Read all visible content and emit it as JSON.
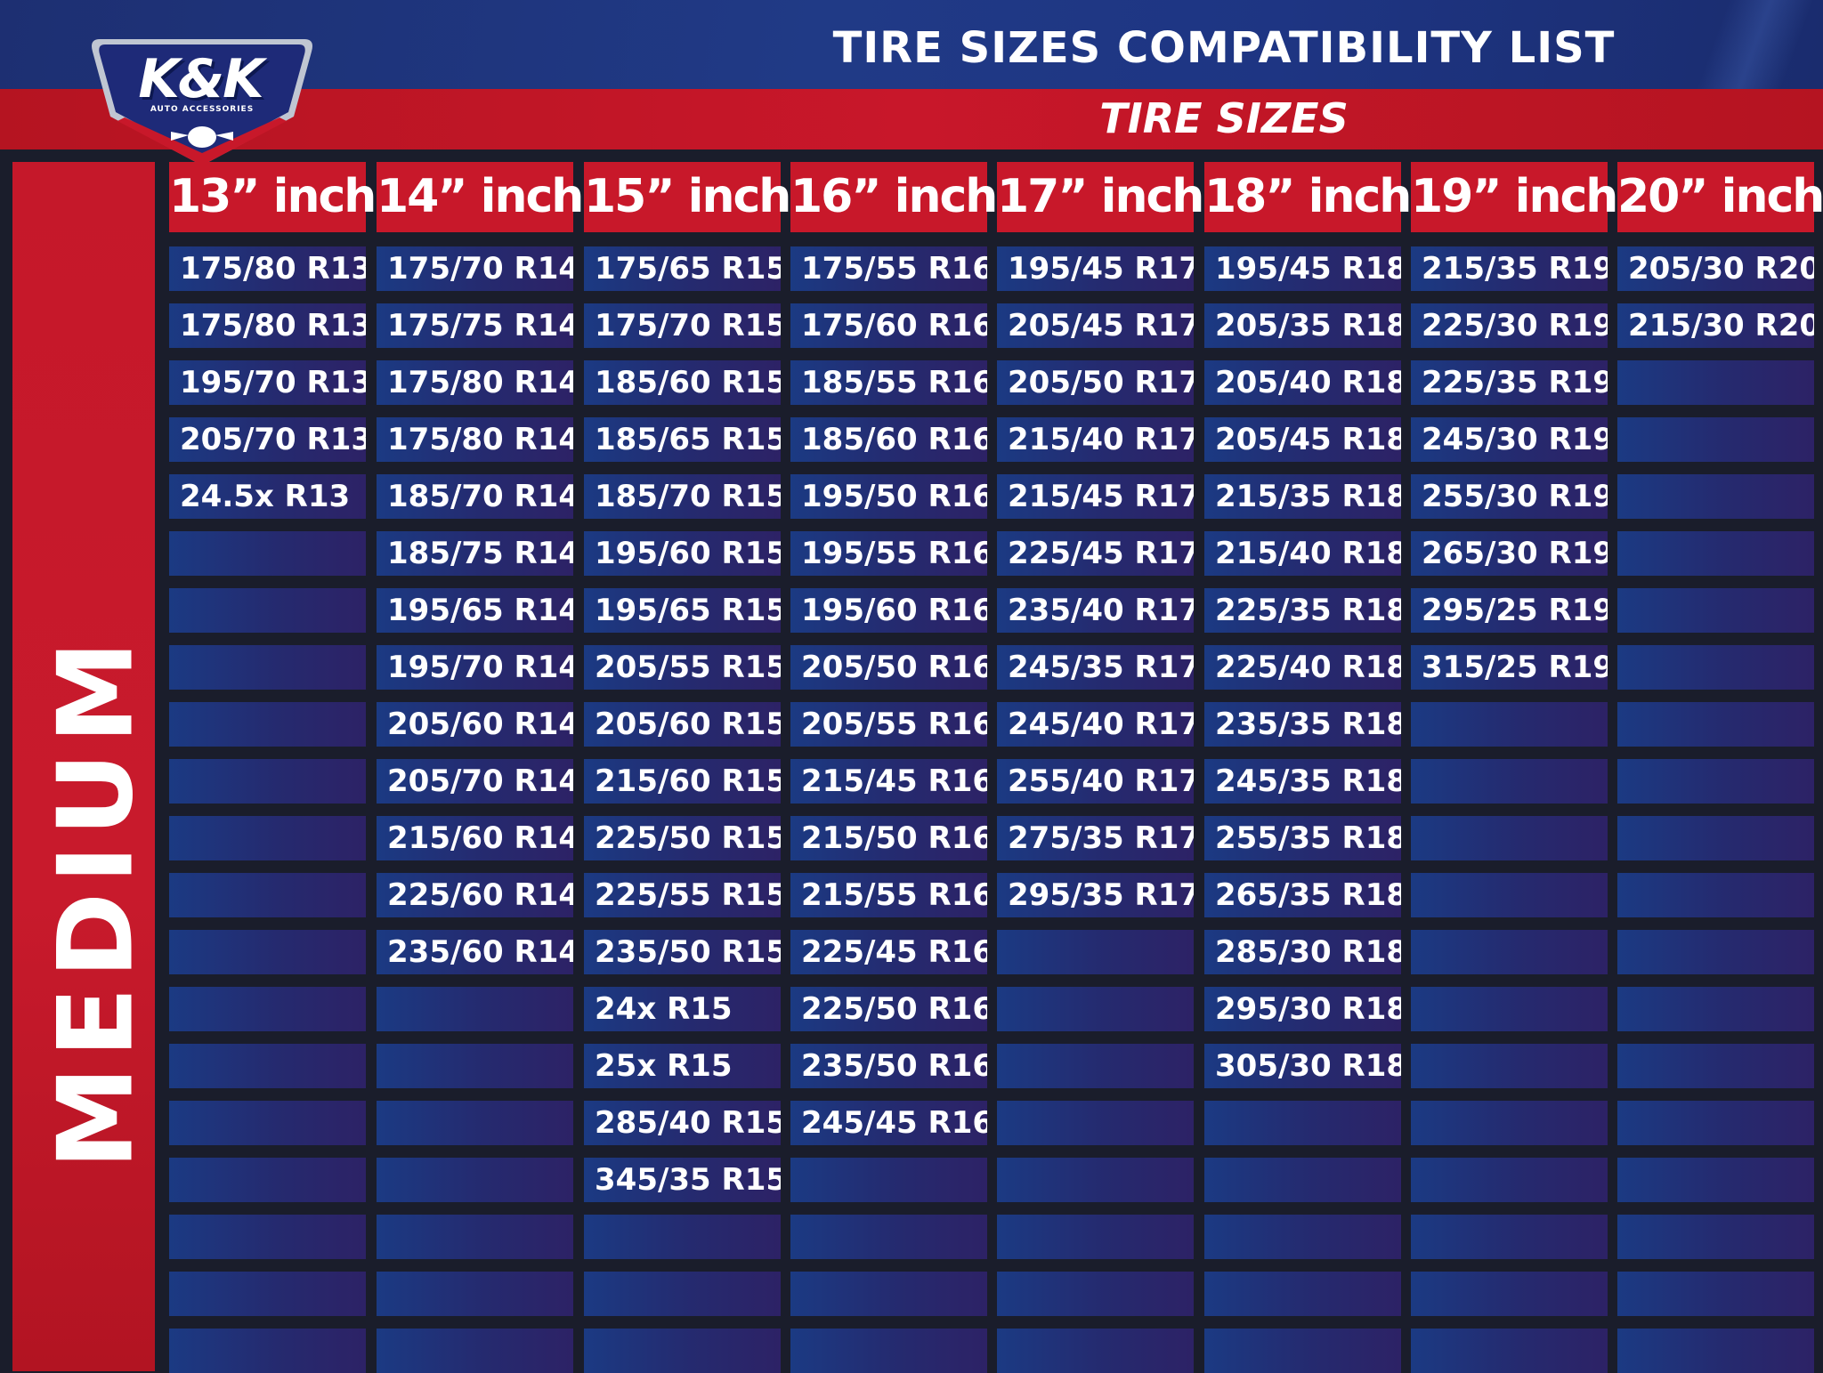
{
  "header": {
    "title": "TIRE SIZES COMPATIBILITY LIST",
    "subtitle": "TIRE SIZES"
  },
  "logo": {
    "brand": "K&K",
    "tagline": "AUTO ACCESSORIES"
  },
  "category": "MEDIUM",
  "colors": {
    "red": "#c8182a",
    "navy": "#1e3583",
    "cell_blue": "#232c72",
    "background": "#1a1d2b"
  },
  "table": {
    "columns": [
      {
        "label": "13” inch",
        "sizes": [
          "175/80 R13",
          "175/80 R13",
          "195/70 R13",
          "205/70 R13",
          "24.5x R13"
        ]
      },
      {
        "label": "14” inch",
        "sizes": [
          "175/70 R14",
          "175/75 R14",
          "175/80 R14",
          "175/80 R14",
          "185/70 R14",
          "185/75 R14",
          "195/65 R14",
          "195/70 R14",
          "205/60 R14",
          "205/70 R14",
          "215/60 R14",
          "225/60 R14",
          "235/60 R14"
        ]
      },
      {
        "label": "15” inch",
        "sizes": [
          "175/65 R15",
          "175/70 R15",
          "185/60 R15",
          "185/65 R15",
          "185/70 R15",
          "195/60 R15",
          "195/65 R15",
          "205/55 R15",
          "205/60 R15",
          "215/60 R15",
          "225/50 R15",
          "225/55 R15",
          "235/50 R15",
          "24x R15",
          "25x R15",
          "285/40 R15",
          "345/35 R15"
        ]
      },
      {
        "label": "16” inch",
        "sizes": [
          "175/55 R16",
          "175/60 R16",
          "185/55 R16",
          "185/60 R16",
          "195/50 R16",
          "195/55 R16",
          "195/60 R16",
          "205/50 R16",
          "205/55 R16",
          "215/45 R16",
          "215/50 R16",
          "215/55 R16",
          "225/45 R16",
          "225/50 R16",
          "235/50 R16",
          "245/45 R16"
        ]
      },
      {
        "label": "17” inch",
        "sizes": [
          "195/45 R17",
          "205/45 R17",
          "205/50 R17",
          "215/40 R17",
          "215/45 R17",
          "225/45 R17",
          "235/40 R17",
          "245/35 R17",
          "245/40 R17",
          "255/40 R17",
          "275/35 R17",
          "295/35 R17"
        ]
      },
      {
        "label": "18” inch",
        "sizes": [
          "195/45 R18",
          "205/35 R18",
          "205/40 R18",
          "205/45 R18",
          "215/35 R18",
          "215/40 R18",
          "225/35 R18",
          "225/40 R18",
          "235/35 R18",
          "245/35 R18",
          "255/35 R18",
          "265/35 R18",
          "285/30 R18",
          "295/30 R18",
          "305/30 R18"
        ]
      },
      {
        "label": "19” inch",
        "sizes": [
          "215/35 R19",
          "225/30 R19",
          "225/35 R19",
          "245/30 R19",
          "255/30 R19",
          "265/30 R19",
          "295/25 R19",
          "315/25 R19"
        ]
      },
      {
        "label": "20” inch",
        "sizes": [
          "205/30 R20",
          "215/30 R20"
        ]
      }
    ]
  }
}
